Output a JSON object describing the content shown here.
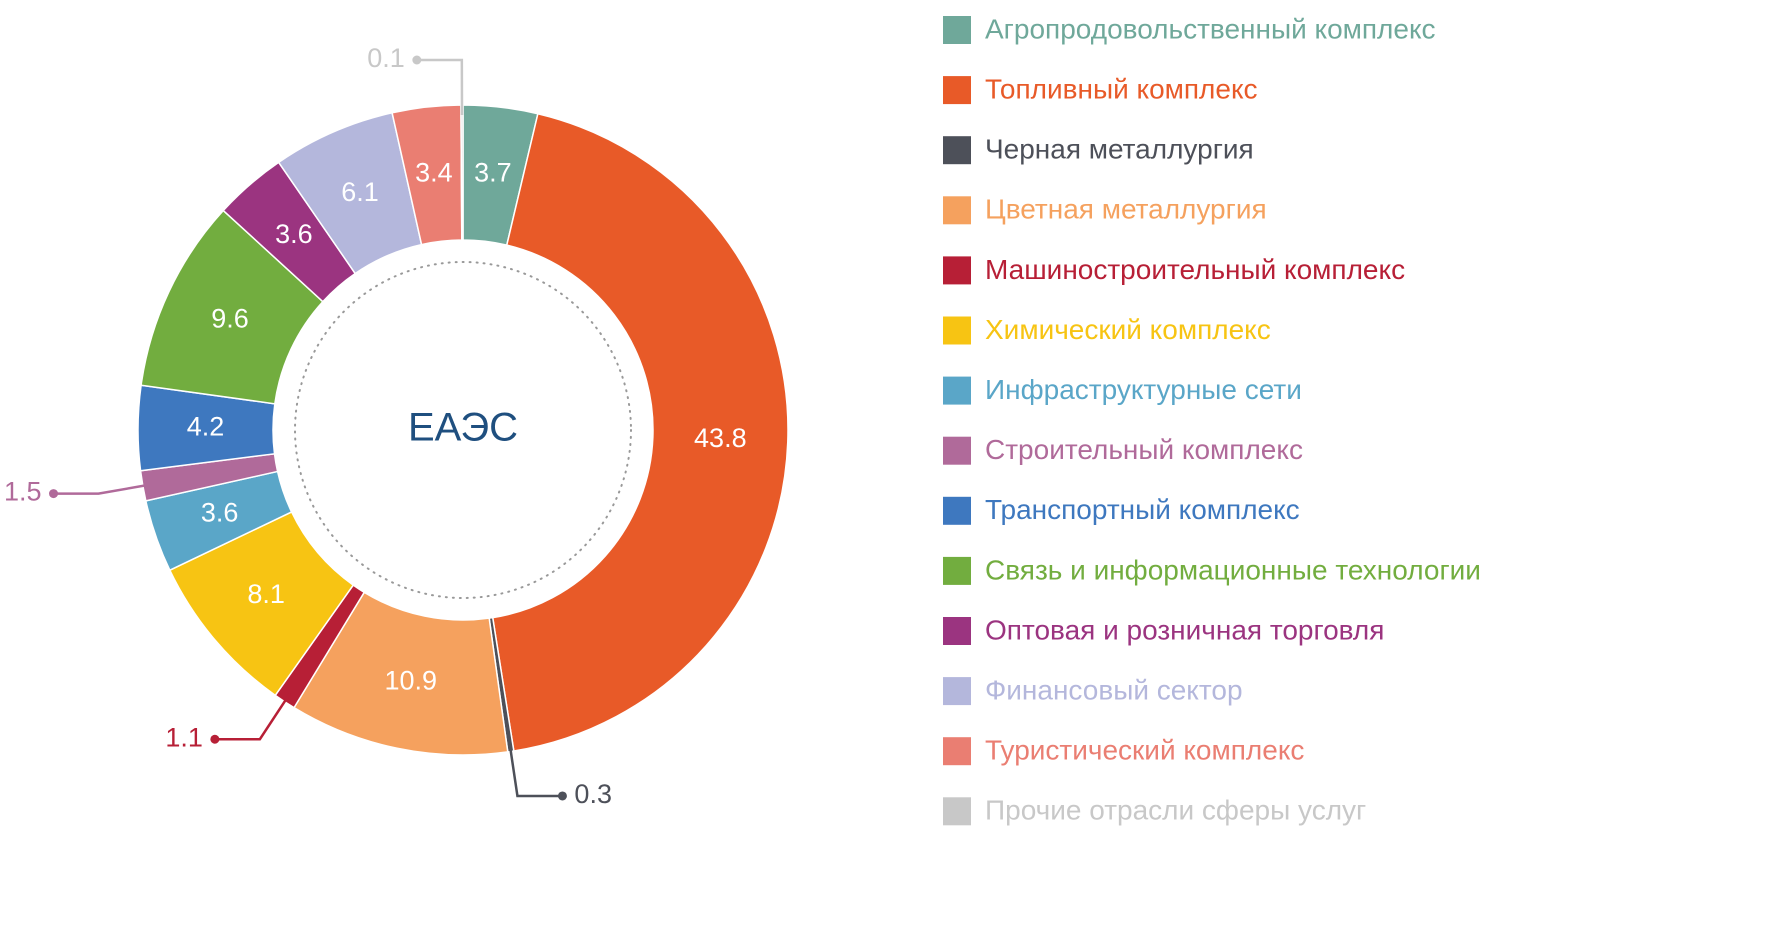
{
  "chart_data": {
    "type": "donut",
    "center_label": "ЕАЭС",
    "categories": [
      "Агропродовольственный комплекс",
      "Топливный комплекс",
      "Черная металлургия",
      "Цветная металлургия",
      "Машиностроительный комплекс",
      "Химический комплекс",
      "Инфраструктурные сети",
      "Строительный комплекс",
      "Транспортный комплекс",
      "Связь и информационные технологии",
      "Оптовая и розничная торговля",
      "Финансовый сектор",
      "Туристический комплекс",
      "Прочие отрасли сферы услуг"
    ],
    "values": [
      3.7,
      43.8,
      0.3,
      10.9,
      1.1,
      8.1,
      3.6,
      1.5,
      4.2,
      9.6,
      3.6,
      6.1,
      3.4,
      0.1
    ],
    "colors": [
      "#6fa89a",
      "#e85a28",
      "#4d5059",
      "#f5a15e",
      "#b71f36",
      "#f7c413",
      "#5aa6c8",
      "#b06a9a",
      "#3e78bf",
      "#72ad3f",
      "#9b3480",
      "#b4b7dc",
      "#ea7e72",
      "#c8c8c8"
    ],
    "legend": "right"
  }
}
